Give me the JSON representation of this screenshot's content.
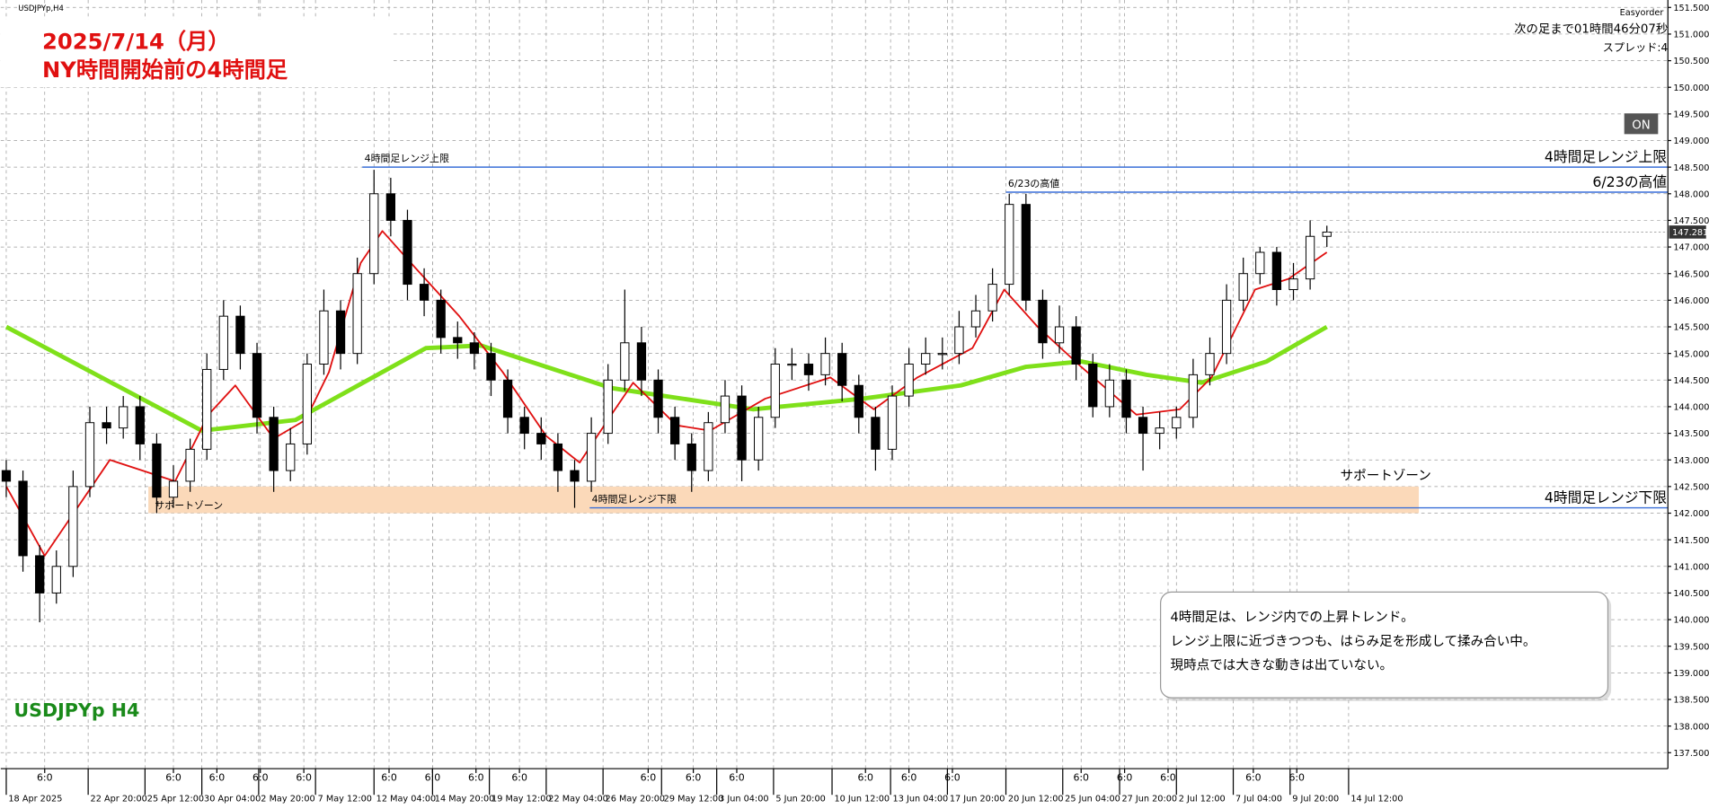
{
  "chart_data": {
    "type": "candlestick",
    "symbol": "USDJPYp,H4",
    "heading": [
      "2025/7/14（月）",
      "NY時間開始前の4時間足"
    ],
    "watermark": "USDJPYp H4",
    "panel": [
      "Easyorder",
      "次の足まで01時間46分07秒",
      "スプレッド:4"
    ],
    "button": "ON",
    "xlim": [
      -0.33,
      99.4
    ],
    "ylim": [
      137.2,
      151.64
    ],
    "grid": true,
    "xticks": [
      {
        "value": 0,
        "label": "18 Apr 2025"
      },
      {
        "value": 4.9,
        "label": "22 Apr 20:00"
      },
      {
        "value": 8.3,
        "label": "25 Apr 12:00"
      },
      {
        "value": 11.7,
        "label": "30 Apr 04:00"
      },
      {
        "value": 15.1,
        "label": "2 May 20:00"
      },
      {
        "value": 18.5,
        "label": "7 May 12:00"
      },
      {
        "value": 22.0,
        "label": "12 May 04:00"
      },
      {
        "value": 25.5,
        "label": "14 May 20:00"
      },
      {
        "value": 28.9,
        "label": "19 May 12:00"
      },
      {
        "value": 32.3,
        "label": "22 May 04:00"
      },
      {
        "value": 35.7,
        "label": "26 May 20:00"
      },
      {
        "value": 39.2,
        "label": "29 May 12:00"
      },
      {
        "value": 42.5,
        "label": "3 Jun 04:00"
      },
      {
        "value": 45.9,
        "label": "5 Jun 20:00"
      },
      {
        "value": 49.4,
        "label": "10 Jun 12:00"
      },
      {
        "value": 52.9,
        "label": "13 Jun 04:00"
      },
      {
        "value": 56.3,
        "label": "17 Jun 20:00"
      },
      {
        "value": 59.8,
        "label": "20 Jun 12:00"
      },
      {
        "value": 63.2,
        "label": "25 Jun 04:00"
      },
      {
        "value": 66.6,
        "label": "27 Jun 20:00"
      },
      {
        "value": 70.0,
        "label": "2 Jul 12:00"
      },
      {
        "value": 73.4,
        "label": "7 Jul 04:00"
      },
      {
        "value": 76.8,
        "label": "9 Jul 20:00"
      },
      {
        "value": 80.3,
        "label": "14 Jul 12:00"
      }
    ],
    "xticks_minor": [
      {
        "value": 2.3,
        "label": "6:0"
      },
      {
        "value": 10.0,
        "label": "6:0"
      },
      {
        "value": 12.6,
        "label": "6:0"
      },
      {
        "value": 15.2,
        "label": "6:0"
      },
      {
        "value": 17.8,
        "label": "6:0"
      },
      {
        "value": 22.9,
        "label": "6:0"
      },
      {
        "value": 25.5,
        "label": "6:0"
      },
      {
        "value": 28.1,
        "label": "6:0"
      },
      {
        "value": 30.7,
        "label": "6:0"
      },
      {
        "value": 38.4,
        "label": "6:0"
      },
      {
        "value": 41.1,
        "label": "6:0"
      },
      {
        "value": 43.7,
        "label": "6:0"
      },
      {
        "value": 51.4,
        "label": "6:0"
      },
      {
        "value": 54.0,
        "label": "6:0"
      },
      {
        "value": 56.6,
        "label": "6:0"
      },
      {
        "value": 64.3,
        "label": "6:0"
      },
      {
        "value": 66.9,
        "label": "6:0"
      },
      {
        "value": 69.5,
        "label": "6:0"
      },
      {
        "value": 74.6,
        "label": "6:0"
      },
      {
        "value": 77.2,
        "label": "6:0"
      }
    ],
    "yticks": [
      {
        "value": 137.5,
        "label": "137.500"
      },
      {
        "value": 138,
        "label": "138.000"
      },
      {
        "value": 138.5,
        "label": "138.500"
      },
      {
        "value": 139,
        "label": "139.000"
      },
      {
        "value": 139.5,
        "label": "139.500"
      },
      {
        "value": 140,
        "label": "140.000"
      },
      {
        "value": 140.5,
        "label": "140.500"
      },
      {
        "value": 141,
        "label": "141.000"
      },
      {
        "value": 141.5,
        "label": "141.500"
      },
      {
        "value": 142,
        "label": "142.000"
      },
      {
        "value": 142.5,
        "label": "142.500"
      },
      {
        "value": 143,
        "label": "143.000"
      },
      {
        "value": 143.5,
        "label": "143.500"
      },
      {
        "value": 144,
        "label": "144.000"
      },
      {
        "value": 144.5,
        "label": "144.500"
      },
      {
        "value": 145,
        "label": "145.000"
      },
      {
        "value": 145.5,
        "label": "145.500"
      },
      {
        "value": 146,
        "label": "146.000"
      },
      {
        "value": 146.5,
        "label": "146.500"
      },
      {
        "value": 147,
        "label": "147.000"
      },
      {
        "value": 147.5,
        "label": "147.500"
      },
      {
        "value": 148,
        "label": "148.000"
      },
      {
        "value": 148.5,
        "label": "148.500"
      },
      {
        "value": 149,
        "label": "149.000"
      },
      {
        "value": 149.5,
        "label": "149.500"
      },
      {
        "value": 150,
        "label": "150.000"
      },
      {
        "value": 150.5,
        "label": "150.500"
      },
      {
        "value": 151,
        "label": "151.000"
      },
      {
        "value": 151.5,
        "label": "151.500"
      }
    ],
    "last_price": 147.281,
    "candle_colors": {
      "up": "#ffffff",
      "down": "#000000",
      "wick": "#000000"
    },
    "open": [
      142.8,
      142.6,
      141.2,
      140.5,
      141.0,
      142.5,
      143.7,
      143.6,
      144.0,
      143.3,
      142.3,
      142.6,
      143.2,
      144.7,
      145.7,
      145.0,
      143.8,
      142.8,
      143.3,
      144.8,
      145.8,
      145.0,
      146.5,
      148.0,
      147.5,
      146.3,
      146.0,
      145.3,
      145.2,
      145.0,
      144.5,
      143.8,
      143.5,
      143.3,
      142.8,
      142.6,
      143.5,
      144.5,
      145.2,
      144.5,
      143.8,
      143.3,
      142.8,
      143.7,
      144.2,
      143.0,
      143.8,
      144.8,
      144.8,
      144.6,
      145.0,
      144.4,
      143.8,
      143.2,
      144.2,
      144.8,
      145.0,
      145.0,
      145.5,
      145.8,
      146.3,
      147.8,
      146.0,
      145.2,
      145.5,
      144.8,
      144.0,
      144.5,
      143.8,
      143.5,
      143.6,
      143.8,
      144.6,
      145.0,
      146.0,
      146.5,
      146.9,
      146.2,
      146.4,
      147.2
    ],
    "high": [
      143.0,
      142.8,
      141.4,
      141.3,
      142.8,
      144.0,
      144.0,
      144.2,
      144.2,
      143.5,
      142.9,
      143.4,
      145.0,
      146.0,
      145.9,
      145.2,
      144.0,
      143.6,
      145.0,
      146.2,
      146.0,
      146.8,
      148.45,
      148.3,
      147.7,
      146.6,
      146.2,
      145.6,
      145.4,
      145.2,
      144.7,
      144.0,
      143.8,
      143.5,
      143.0,
      143.8,
      144.8,
      146.2,
      145.5,
      144.7,
      144.0,
      143.5,
      143.9,
      144.5,
      144.4,
      144.0,
      145.1,
      145.1,
      145.0,
      145.3,
      145.2,
      144.6,
      144.0,
      144.4,
      145.1,
      145.3,
      145.3,
      145.8,
      146.1,
      146.6,
      148.0,
      148.0,
      146.2,
      145.9,
      145.7,
      145.0,
      144.8,
      144.7,
      144.0,
      143.9,
      144.0,
      144.9,
      145.3,
      146.3,
      146.8,
      147.0,
      147.0,
      146.7,
      147.5,
      147.4
    ],
    "low": [
      142.3,
      140.9,
      139.95,
      140.3,
      140.8,
      142.3,
      143.3,
      143.4,
      143.0,
      142.0,
      142.1,
      142.4,
      143.0,
      144.5,
      144.7,
      143.5,
      142.4,
      142.6,
      143.1,
      144.6,
      144.7,
      144.8,
      146.3,
      147.2,
      146.0,
      145.7,
      145.0,
      144.9,
      144.7,
      144.2,
      143.5,
      143.2,
      143.0,
      142.4,
      142.1,
      142.4,
      143.3,
      144.3,
      144.2,
      143.5,
      143.0,
      142.4,
      142.6,
      143.5,
      142.6,
      142.8,
      143.6,
      144.5,
      144.3,
      144.4,
      144.1,
      143.5,
      142.8,
      143.0,
      144.0,
      144.6,
      144.7,
      144.8,
      145.3,
      145.6,
      146.1,
      145.8,
      144.9,
      145.0,
      144.5,
      143.8,
      143.8,
      143.5,
      142.8,
      143.2,
      143.4,
      143.6,
      144.4,
      144.8,
      145.8,
      146.3,
      145.9,
      146.0,
      146.2,
      147.0
    ],
    "close": [
      142.6,
      141.2,
      140.5,
      141.0,
      142.5,
      143.7,
      143.6,
      144.0,
      143.3,
      142.3,
      142.6,
      143.2,
      144.7,
      145.7,
      145.0,
      143.8,
      142.8,
      143.3,
      144.8,
      145.8,
      145.0,
      146.5,
      148.0,
      147.5,
      146.3,
      146.0,
      145.3,
      145.2,
      145.0,
      144.5,
      143.8,
      143.5,
      143.3,
      142.8,
      142.6,
      143.5,
      144.5,
      145.2,
      144.5,
      143.8,
      143.3,
      142.8,
      143.7,
      144.2,
      143.0,
      143.8,
      144.8,
      144.8,
      144.6,
      145.0,
      144.4,
      143.8,
      143.2,
      144.2,
      144.8,
      145.0,
      145.0,
      145.5,
      145.8,
      146.3,
      147.8,
      146.0,
      145.2,
      145.5,
      144.8,
      144.0,
      144.5,
      143.8,
      143.5,
      143.6,
      143.8,
      144.6,
      145.0,
      146.0,
      146.5,
      146.9,
      146.2,
      146.4,
      147.2,
      147.28
    ],
    "series": [
      {
        "color": "#7fe01a",
        "width": 4,
        "x": [
          0,
          11.7,
          17.3,
          25.1,
          28.4,
          36.2,
          44.7,
          51.2,
          57.1,
          61,
          64.3,
          68.2,
          71.5,
          75.4,
          79
        ],
        "values": [
          145.5,
          143.55,
          143.75,
          145.1,
          145.15,
          144.35,
          143.95,
          144.15,
          144.4,
          144.75,
          144.85,
          144.6,
          144.45,
          144.85,
          145.5
        ]
      },
      {
        "color": "#e01010",
        "width": 1.5,
        "x": [
          0,
          2.3,
          3.6,
          6.2,
          10.1,
          12.1,
          13.7,
          16,
          17.9,
          19.3,
          21.2,
          22.5,
          24.5,
          27.1,
          29.7,
          32.3,
          34.3,
          36.2,
          37.5,
          40.1,
          42.1,
          45.4,
          49.3,
          51.9,
          54.5,
          57.8,
          59.7,
          61.7,
          64.3,
          67.6,
          70.2,
          72.1,
          74.7,
          76.7,
          79
        ],
        "values": [
          142.5,
          141.2,
          141.8,
          143.0,
          142.6,
          143.85,
          144.4,
          143.4,
          143.75,
          144.65,
          146.7,
          147.3,
          146.6,
          145.7,
          144.65,
          143.45,
          142.95,
          143.85,
          144.45,
          143.65,
          143.55,
          144.15,
          144.55,
          143.95,
          144.55,
          145.1,
          146.2,
          145.5,
          144.75,
          143.85,
          143.95,
          144.55,
          146.2,
          146.4,
          146.9
        ]
      }
    ],
    "levels": [
      {
        "label": "4時間足レンジ上限",
        "value": 148.5,
        "x_start": 21.3,
        "color": "#3a6fd8"
      },
      {
        "label": "6/23の高値",
        "value": 148.03,
        "x_start": 59.8,
        "color": "#3a6fd8"
      },
      {
        "label": "4時間足レンジ下限",
        "value": 142.1,
        "x_start": 34.9,
        "color": "#3a6fd8"
      }
    ],
    "zone": {
      "label": "サポートゾーン",
      "ymin": 142.0,
      "ymax": 142.5,
      "xmin": 8.5,
      "xmax": 84.5,
      "color": "#fbd9b9"
    },
    "annotation": [
      "4時間足は、レンジ内での上昇トレンド。",
      "レンジ上限に近づきつつも、はらみ足を形成して揉み合い中。",
      "現時点では大きな動きは出ていない。"
    ]
  }
}
